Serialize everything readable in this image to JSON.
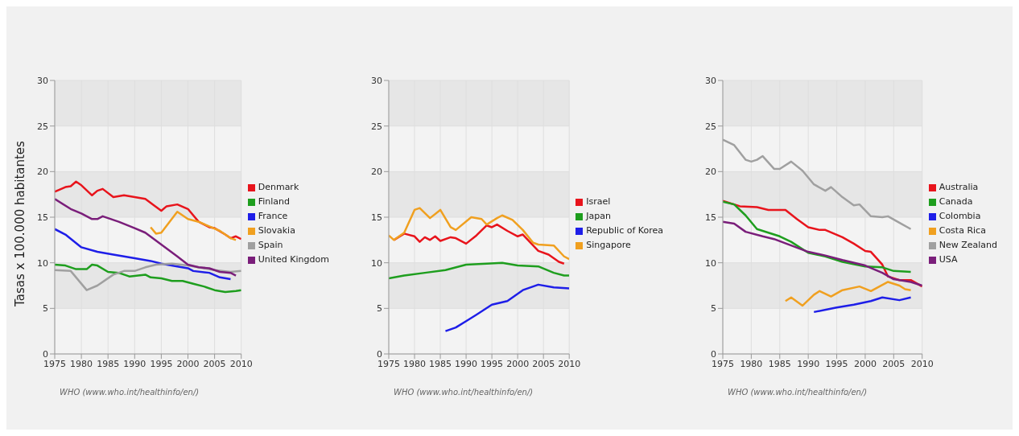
{
  "chart_data": [
    {
      "type": "line",
      "ylabel": "Tasas x 100.000 habitantes",
      "xlim": [
        1975,
        2010
      ],
      "xticks": [
        1975,
        1980,
        1985,
        1990,
        1995,
        2000,
        2005,
        2010
      ],
      "ylim": [
        0,
        30
      ],
      "yticks": [
        0,
        5,
        10,
        15,
        20,
        25,
        30
      ],
      "grid": true,
      "legend": "right",
      "marker": "none",
      "annotations": [
        "WHO (www.who.int/healthinfo/en/)"
      ],
      "series": [
        {
          "name": "Denmark",
          "color": "#e8141c",
          "x": [
            1975,
            1977,
            1978,
            1979,
            1980,
            1982,
            1983,
            1984,
            1986,
            1988,
            1990,
            1992,
            1995,
            1996,
            1998,
            2000,
            2002,
            2004,
            2005,
            2007,
            2008,
            2009,
            2010
          ],
          "values": [
            17.8,
            18.3,
            18.4,
            18.9,
            18.5,
            17.4,
            17.9,
            18.1,
            17.2,
            17.4,
            17.2,
            17.0,
            15.7,
            16.2,
            16.4,
            15.9,
            14.5,
            13.9,
            13.8,
            13.1,
            12.7,
            12.9,
            12.6
          ]
        },
        {
          "name": "Finland",
          "color": "#1e9e1e",
          "x": [
            1975,
            1977,
            1979,
            1981,
            1982,
            1983,
            1985,
            1987,
            1989,
            1992,
            1993,
            1995,
            1997,
            1999,
            2001,
            2003,
            2005,
            2007,
            2009,
            2010
          ],
          "values": [
            9.8,
            9.7,
            9.3,
            9.3,
            9.8,
            9.7,
            9.0,
            8.9,
            8.5,
            8.7,
            8.4,
            8.3,
            8.0,
            8.0,
            7.7,
            7.4,
            7.0,
            6.8,
            6.9,
            7.0
          ]
        },
        {
          "name": "France",
          "color": "#1e1ee8",
          "x": [
            1975,
            1977,
            1980,
            1983,
            1986,
            1990,
            1993,
            1995,
            1998,
            2000,
            2001,
            2004,
            2006,
            2008
          ],
          "values": [
            13.7,
            13.1,
            11.7,
            11.2,
            10.9,
            10.5,
            10.2,
            9.9,
            9.6,
            9.4,
            9.1,
            8.9,
            8.4,
            8.2
          ]
        },
        {
          "name": "Slovakia",
          "color": "#f0a020",
          "x": [
            1993,
            1994,
            1995,
            1998,
            2000,
            2002,
            2004,
            2006,
            2008,
            2009
          ],
          "values": [
            13.9,
            13.2,
            13.3,
            15.6,
            14.8,
            14.5,
            14.0,
            13.5,
            12.7,
            12.5
          ]
        },
        {
          "name": "Spain",
          "color": "#a0a0a0",
          "x": [
            1975,
            1978,
            1981,
            1983,
            1986,
            1988,
            1990,
            1992,
            1994,
            1997,
            2000,
            2002,
            2005,
            2008,
            2010
          ],
          "values": [
            9.2,
            9.1,
            7.0,
            7.5,
            8.7,
            9.1,
            9.1,
            9.5,
            9.8,
            9.9,
            9.7,
            9.5,
            9.2,
            9.0,
            9.1
          ]
        },
        {
          "name": "United Kingdom",
          "color": "#7a1e7a",
          "x": [
            1975,
            1978,
            1980,
            1982,
            1983,
            1984,
            1987,
            1990,
            1992,
            1995,
            1998,
            2000,
            2002,
            2004,
            2006,
            2008,
            2009
          ],
          "values": [
            17.0,
            15.9,
            15.4,
            14.8,
            14.8,
            15.1,
            14.5,
            13.8,
            13.3,
            12.0,
            10.7,
            9.8,
            9.5,
            9.4,
            9.0,
            8.9,
            8.6
          ]
        }
      ]
    },
    {
      "type": "line",
      "xlim": [
        1975,
        2010
      ],
      "xticks": [
        1975,
        1980,
        1985,
        1990,
        1995,
        2000,
        2005,
        2010
      ],
      "ylim": [
        0,
        30
      ],
      "yticks": [
        0,
        5,
        10,
        15,
        20,
        25,
        30
      ],
      "grid": true,
      "legend": "right",
      "marker": "none",
      "annotations": [
        "WHO (www.who.int/healthinfo/en/)"
      ],
      "series": [
        {
          "name": "Israel",
          "color": "#e8141c",
          "x": [
            1976,
            1978,
            1980,
            1981,
            1982,
            1983,
            1984,
            1985,
            1987,
            1988,
            1990,
            1992,
            1994,
            1995,
            1996,
            1998,
            2000,
            2001,
            2002,
            2004,
            2006,
            2008,
            2009
          ],
          "values": [
            12.5,
            13.2,
            12.9,
            12.3,
            12.8,
            12.5,
            12.9,
            12.4,
            12.8,
            12.7,
            12.1,
            13.0,
            14.1,
            13.9,
            14.2,
            13.5,
            12.9,
            13.1,
            12.5,
            11.3,
            10.9,
            10.1,
            9.9
          ]
        },
        {
          "name": "Japan",
          "color": "#1e9e1e",
          "x": [
            1975,
            1978,
            1982,
            1986,
            1990,
            1994,
            1997,
            2000,
            2004,
            2007,
            2009,
            2010
          ],
          "values": [
            8.3,
            8.6,
            8.9,
            9.2,
            9.8,
            9.9,
            10.0,
            9.7,
            9.6,
            8.9,
            8.6,
            8.6
          ]
        },
        {
          "name": "Republic of Korea",
          "color": "#1e1ee8",
          "x": [
            1986,
            1988,
            1990,
            1992,
            1995,
            1998,
            2001,
            2004,
            2007,
            2010
          ],
          "values": [
            2.5,
            2.9,
            3.6,
            4.3,
            5.4,
            5.8,
            7.0,
            7.6,
            7.3,
            7.2
          ]
        },
        {
          "name": "Singapore",
          "color": "#f0a020",
          "x": [
            1975,
            1976,
            1978,
            1980,
            1981,
            1983,
            1985,
            1987,
            1988,
            1991,
            1993,
            1994,
            1996,
            1997,
            1999,
            2001,
            2003,
            2004,
            2007,
            2009,
            2010
          ],
          "values": [
            13.0,
            12.5,
            13.3,
            15.8,
            16.0,
            14.9,
            15.8,
            13.9,
            13.6,
            15.0,
            14.8,
            14.2,
            14.9,
            15.2,
            14.7,
            13.6,
            12.2,
            12.0,
            11.9,
            10.7,
            10.4
          ]
        }
      ]
    },
    {
      "type": "line",
      "xlim": [
        1975,
        2010
      ],
      "xticks": [
        1975,
        1980,
        1985,
        1990,
        1995,
        2000,
        2005,
        2010
      ],
      "ylim": [
        0,
        30
      ],
      "yticks": [
        0,
        5,
        10,
        15,
        20,
        25,
        30
      ],
      "grid": true,
      "legend": "right",
      "marker": "none",
      "annotations": [
        "WHO (www.who.int/healthinfo/en/)"
      ],
      "series": [
        {
          "name": "Australia",
          "color": "#e8141c",
          "x": [
            1975,
            1978,
            1981,
            1983,
            1986,
            1988,
            1990,
            1992,
            1993,
            1996,
            1998,
            2000,
            2001,
            2003,
            2004,
            2006,
            2008,
            2010
          ],
          "values": [
            16.8,
            16.2,
            16.1,
            15.8,
            15.8,
            14.8,
            13.9,
            13.6,
            13.6,
            12.8,
            12.1,
            11.3,
            11.2,
            9.8,
            8.5,
            8.1,
            8.1,
            7.4
          ]
        },
        {
          "name": "Canada",
          "color": "#1e9e1e",
          "x": [
            1975,
            1977,
            1979,
            1981,
            1983,
            1985,
            1987,
            1990,
            1993,
            1996,
            2000,
            2003,
            2005,
            2008
          ],
          "values": [
            16.7,
            16.4,
            15.2,
            13.7,
            13.3,
            12.9,
            12.3,
            11.1,
            10.7,
            10.1,
            9.6,
            9.5,
            9.1,
            9.0
          ]
        },
        {
          "name": "Colombia",
          "color": "#1e1ee8",
          "x": [
            1991,
            1995,
            1998,
            2001,
            2003,
            2006,
            2008
          ],
          "values": [
            4.6,
            5.1,
            5.4,
            5.8,
            6.2,
            5.9,
            6.2
          ]
        },
        {
          "name": "Costa Rica",
          "color": "#f0a020",
          "x": [
            1986,
            1987,
            1989,
            1991,
            1992,
            1994,
            1996,
            1999,
            2001,
            2004,
            2006,
            2007,
            2008
          ],
          "values": [
            5.8,
            6.2,
            5.3,
            6.5,
            6.9,
            6.3,
            7.0,
            7.4,
            6.9,
            7.9,
            7.5,
            7.1,
            7.0
          ]
        },
        {
          "name": "New Zealand",
          "color": "#a0a0a0",
          "x": [
            1975,
            1977,
            1979,
            1980,
            1981,
            1982,
            1984,
            1985,
            1987,
            1989,
            1991,
            1993,
            1994,
            1996,
            1998,
            1999,
            2001,
            2003,
            2004,
            2006,
            2008
          ],
          "values": [
            23.5,
            22.9,
            21.3,
            21.1,
            21.3,
            21.7,
            20.3,
            20.3,
            21.1,
            20.1,
            18.6,
            17.9,
            18.3,
            17.2,
            16.3,
            16.4,
            15.1,
            15.0,
            15.1,
            14.4,
            13.7
          ]
        },
        {
          "name": "USA",
          "color": "#7a1e7a",
          "x": [
            1975,
            1977,
            1979,
            1982,
            1984,
            1987,
            1990,
            1993,
            1996,
            2000,
            2003,
            2005,
            2008,
            2010
          ],
          "values": [
            14.5,
            14.3,
            13.4,
            12.9,
            12.6,
            11.9,
            11.2,
            10.8,
            10.3,
            9.7,
            8.9,
            8.2,
            7.9,
            7.5
          ]
        }
      ]
    }
  ]
}
